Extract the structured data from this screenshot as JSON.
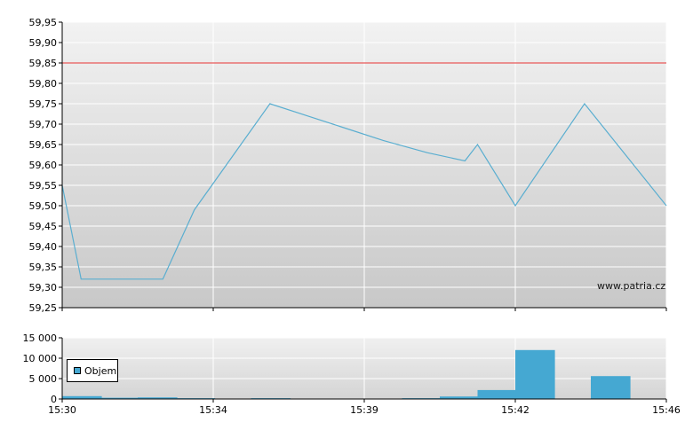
{
  "watermark": "www.patria.cz",
  "colors": {
    "price_line": "#5aaed0",
    "reference_line": "#e85a5a",
    "volume_bar": "#45a8d2",
    "grid": "#ffffff"
  },
  "chart_data": [
    {
      "type": "line",
      "title": "",
      "xlabel": "",
      "ylabel": "",
      "x_tick_labels": [
        "15:30",
        "15:34",
        "15:39",
        "15:42",
        "15:46"
      ],
      "y_tick_labels": [
        "59,25",
        "59,30",
        "59,35",
        "59,40",
        "59,45",
        "59,50",
        "59,55",
        "59,60",
        "59,65",
        "59,70",
        "59,75",
        "59,80",
        "59,85",
        "59,90",
        "59,95"
      ],
      "ylim": [
        59.25,
        59.95
      ],
      "grid": true,
      "reference_line": 59.85,
      "series": [
        {
          "x": [
            "15:30",
            "15:30:30",
            "15:32:40",
            "15:33:30",
            "15:35:30",
            "15:38:30",
            "15:39:40",
            "15:40:40",
            "15:41:00",
            "15:42:00",
            "15:43:50",
            "15:46:00"
          ],
          "values": [
            59.55,
            59.32,
            59.32,
            59.49,
            59.75,
            59.66,
            59.63,
            59.61,
            59.65,
            59.5,
            59.75,
            59.5
          ]
        }
      ]
    },
    {
      "type": "bar",
      "title": "",
      "xlabel": "",
      "ylabel": "",
      "x_tick_labels": [
        "15:30",
        "15:34",
        "15:39",
        "15:42",
        "15:46"
      ],
      "y_tick_labels": [
        "0",
        "5 000",
        "10 000",
        "15 000"
      ],
      "ylim": [
        0,
        15000
      ],
      "grid": true,
      "legend": {
        "placement": "left",
        "entries": [
          "Objem"
        ]
      },
      "series": [
        {
          "name": "Objem",
          "x": [
            "15:30",
            "15:31",
            "15:32",
            "15:33",
            "15:35",
            "15:39",
            "15:40",
            "15:41",
            "15:42",
            "15:44"
          ],
          "values": [
            700,
            300,
            400,
            200,
            200,
            200,
            600,
            2200,
            12000,
            5600
          ]
        }
      ]
    }
  ]
}
